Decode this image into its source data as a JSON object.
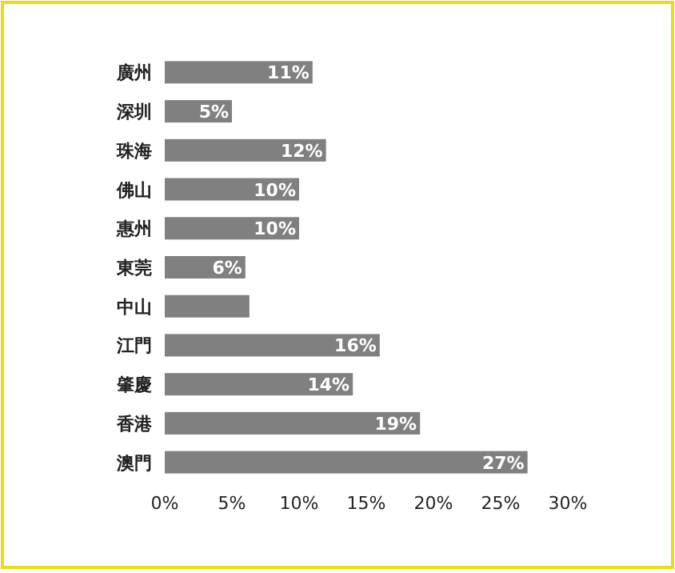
{
  "chart_data": {
    "type": "bar",
    "orientation": "horizontal",
    "categories": [
      "廣州",
      "深圳",
      "珠海",
      "佛山",
      "惠州",
      "東莞",
      "中山",
      "江門",
      "肇慶",
      "香港",
      "澳門"
    ],
    "values": [
      11,
      5,
      12,
      10,
      10,
      6,
      6.3,
      16,
      14,
      19,
      27
    ],
    "value_labels": [
      "11%",
      "5%",
      "12%",
      "10%",
      "10%",
      "6%",
      null,
      "16%",
      "14%",
      "19%",
      "27%"
    ],
    "color": "#808080",
    "xlim": [
      0,
      30
    ],
    "xticks": [
      {
        "value": 0,
        "label": "0%"
      },
      {
        "value": 5,
        "label": "5%"
      },
      {
        "value": 10,
        "label": "10%"
      },
      {
        "value": 15,
        "label": "15%"
      },
      {
        "value": 20,
        "label": "20%"
      },
      {
        "value": 25,
        "label": "25%"
      },
      {
        "value": 30,
        "label": "30%"
      }
    ],
    "grid": false
  }
}
